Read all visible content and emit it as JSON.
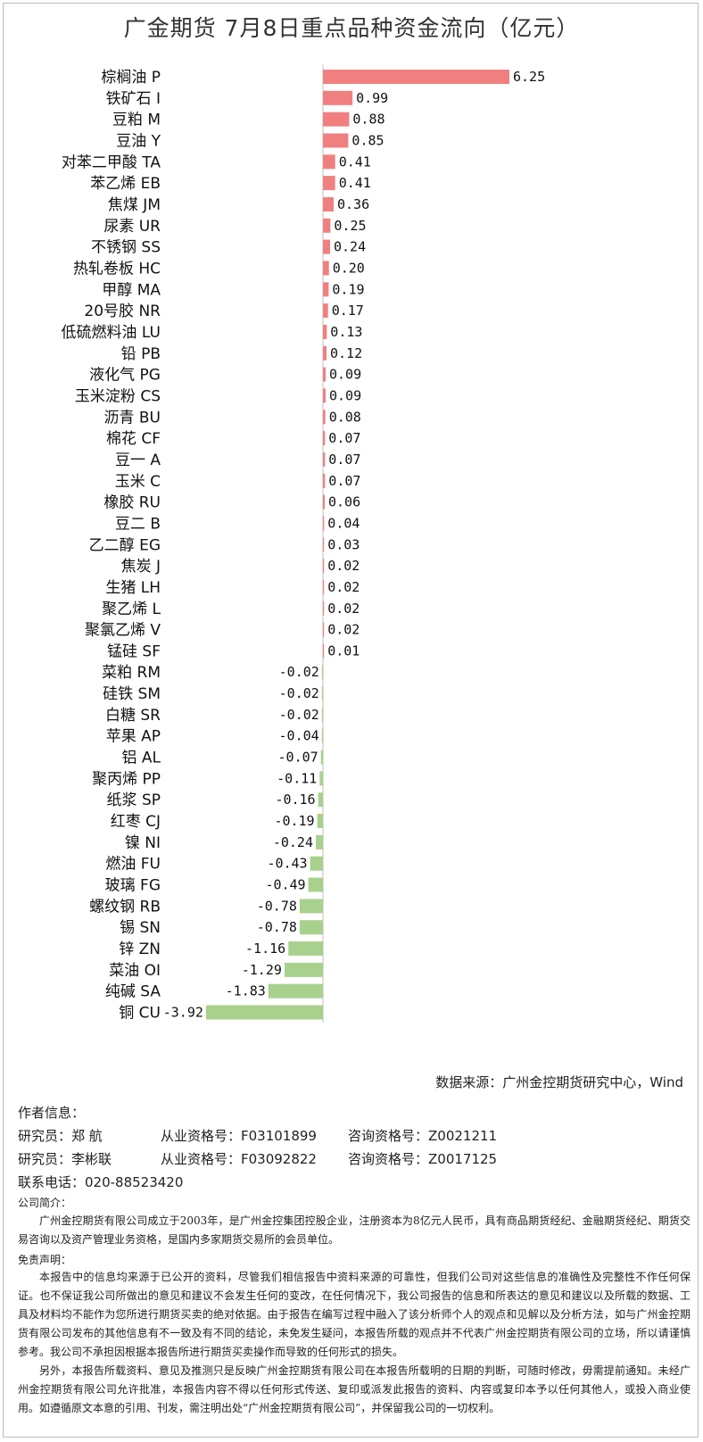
{
  "title": "广金期货 7月8日重点品种资金流向（亿元）",
  "chart_data": {
    "type": "bar",
    "orientation": "horizontal",
    "categories": [
      "棕榈油 P",
      "铁矿石 I",
      "豆粕 M",
      "豆油 Y",
      "对苯二甲酸 TA",
      "苯乙烯 EB",
      "焦煤 JM",
      "尿素 UR",
      "不锈钢 SS",
      "热轧卷板 HC",
      "甲醇 MA",
      "20号胶 NR",
      "低硫燃料油 LU",
      "铅 PB",
      "液化气 PG",
      "玉米淀粉 CS",
      "沥青 BU",
      "棉花 CF",
      "豆一 A",
      "玉米 C",
      "橡胶 RU",
      "豆二 B",
      "乙二醇 EG",
      "焦炭 J",
      "生猪 LH",
      "聚乙烯 L",
      "聚氯乙烯 V",
      "锰硅 SF",
      "菜粕 RM",
      "硅铁 SM",
      "白糖 SR",
      "苹果 AP",
      "铝 AL",
      "聚丙烯 PP",
      "纸浆 SP",
      "红枣 CJ",
      "镍 NI",
      "燃油 FU",
      "玻璃 FG",
      "螺纹钢 RB",
      "锡 SN",
      "锌 ZN",
      "菜油 OI",
      "纯碱 SA",
      "铜 CU"
    ],
    "values": [
      6.25,
      0.99,
      0.88,
      0.85,
      0.41,
      0.41,
      0.36,
      0.25,
      0.24,
      0.2,
      0.19,
      0.17,
      0.13,
      0.12,
      0.09,
      0.09,
      0.08,
      0.07,
      0.07,
      0.07,
      0.06,
      0.04,
      0.03,
      0.02,
      0.02,
      0.02,
      0.02,
      0.01,
      -0.02,
      -0.02,
      -0.02,
      -0.04,
      -0.07,
      -0.11,
      -0.16,
      -0.19,
      -0.24,
      -0.43,
      -0.49,
      -0.78,
      -0.78,
      -1.16,
      -1.29,
      -1.83,
      -3.92
    ],
    "value_labels": [
      "6.25",
      "0.99",
      "0.88",
      "0.85",
      "0.41",
      "0.41",
      "0.36",
      "0.25",
      "0.24",
      "0.20",
      "0.19",
      "0.17",
      "0.13",
      "0.12",
      "0.09",
      "0.09",
      "0.08",
      "0.07",
      "0.07",
      "0.07",
      "0.06",
      "0.04",
      "0.03",
      "0.02",
      "0.02",
      "0.02",
      "0.02",
      "0.01",
      "-0.02",
      "-0.02",
      "-0.02",
      "-0.04",
      "-0.07",
      "-0.11",
      "-0.16",
      "-0.19",
      "-0.24",
      "-0.43",
      "-0.49",
      "-0.78",
      "-0.78",
      "-1.16",
      "-1.29",
      "-1.83",
      "-3.92"
    ],
    "positive_color": "#f08080",
    "negative_color": "#a9d18e",
    "axis_color": "#bfbfbf",
    "xlim": [
      -4,
      6.5
    ],
    "grid": false,
    "legend": "none"
  },
  "source": "数据来源：广州金控期货研究中心，Wind",
  "author": {
    "heading": "作者信息：",
    "rows": [
      {
        "role": "研究员：郑 航",
        "qual": "从业资格号：F03101899",
        "consult": "咨询资格号：Z0021211"
      },
      {
        "role": "研究员：李彬联",
        "qual": "从业资格号：F03092822",
        "consult": "咨询资格号：Z0017125"
      }
    ],
    "phone": "联系电话：020-88523420"
  },
  "company": {
    "heading": "公司简介：",
    "text": "广州金控期货有限公司成立于2003年，是广州金控集团控股企业，注册资本为8亿元人民币，具有商品期货经纪、金融期货经纪、期货交易咨询以及资产管理业务资格，是国内多家期货交易所的会员单位。"
  },
  "disclaimer": {
    "heading": "免责声明：",
    "p1": "本报告中的信息均来源于已公开的资料，尽管我们相信报告中资料来源的可靠性，但我们公司对这些信息的准确性及完整性不作任何保证。也不保证我公司所做出的意见和建议不会发生任何的变改，在任何情况下，我公司报告的信息和所表达的意见和建议以及所载的数据、工具及材料均不能作为您所进行期货买卖的绝对依据。由于报告在编写过程中融入了该分析师个人的观点和见解以及分析方法，如与广州金控期货有限公司发布的其他信息有不一致及有不同的结论，未免发生疑问，本报告所载的观点并不代表广州金控期货有限公司的立场，所以请谨慎参考。我公司不承担因根据本报告所进行期货买卖操作而导致的任何形式的损失。",
    "p2": "另外，本报告所载资料、意见及推测只是反映广州金控期货有限公司在本报告所载明的日期的判断，可随时修改，毋需提前通知。未经广州金控期货有限公司允许批准，本报告内容不得以任何形式传送、复印或派发此报告的资料、内容或复印本予以任何其他人，或投入商业使用。如遵循原文本意的引用、刊发，需注明出处“广州金控期货有限公司”，并保留我公司的一切权利。"
  }
}
